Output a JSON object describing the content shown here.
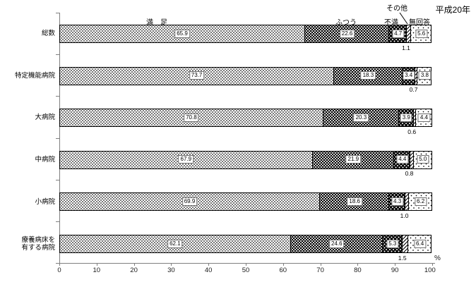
{
  "header": {
    "era_label": "平成20年"
  },
  "chart_data": {
    "type": "bar",
    "orientation": "horizontal",
    "stacked": true,
    "unit": "%",
    "xlim": [
      0,
      100
    ],
    "x_ticks": [
      0,
      10,
      20,
      30,
      40,
      50,
      60,
      70,
      80,
      90,
      100
    ],
    "axis_unit_label": "%",
    "grid": false,
    "legend_position": "top-inline",
    "categories": [
      "総数",
      "特定機能病院",
      "大病院",
      "中病院",
      "小病院",
      "療養病床を\n有する病院"
    ],
    "series": [
      {
        "name": "満足",
        "display_label": "満　足",
        "pattern": "dots-light",
        "value_label_position": "inside",
        "values": [
          65.9,
          73.7,
          70.8,
          67.9,
          69.9,
          62.1
        ]
      },
      {
        "name": "ふつう",
        "display_label": "ふつう",
        "pattern": "dots-dense",
        "value_label_position": "inside",
        "values": [
          22.6,
          18.3,
          20.3,
          21.9,
          18.6,
          24.6
        ]
      },
      {
        "name": "不満",
        "display_label": "不満",
        "pattern": "dots-dark",
        "value_label_position": "inside",
        "values": [
          4.7,
          3.4,
          3.9,
          4.4,
          4.3,
          5.3
        ]
      },
      {
        "name": "その他",
        "display_label": "その他",
        "pattern": "hatch-diagonal",
        "value_label_position": "below",
        "values": [
          1.1,
          0.7,
          0.6,
          0.8,
          1.0,
          1.5
        ]
      },
      {
        "name": "無回答",
        "display_label": "無回答",
        "pattern": "dots-sparse",
        "value_label_position": "inside",
        "values": [
          5.6,
          3.8,
          4.4,
          5.0,
          6.2,
          6.4
        ]
      }
    ]
  }
}
